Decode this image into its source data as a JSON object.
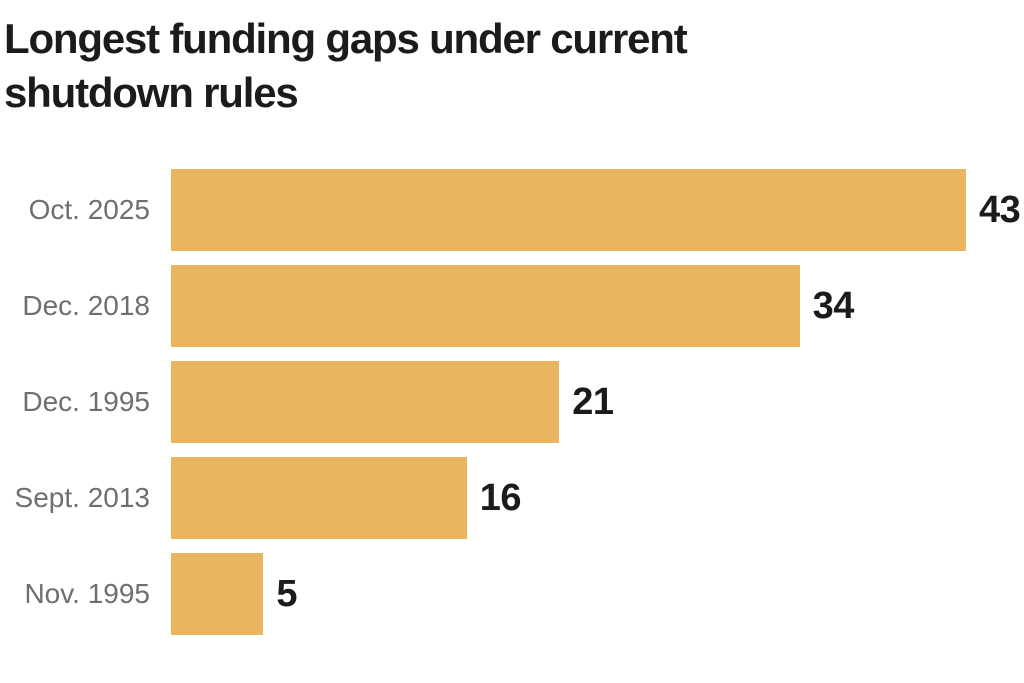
{
  "title": "Longest funding gaps under current shutdown rules",
  "title_lines": [
    "Longest funding gaps under current",
    "shutdown rules"
  ],
  "colors": {
    "background": "#FFFFFF",
    "bar": "#EAB560",
    "title_text": "#1B1B1B",
    "category_label": "#6F6F6F",
    "value_label": "#1B1B1B"
  },
  "chart_data": {
    "type": "bar",
    "orientation": "horizontal",
    "title": "Longest funding gaps under current shutdown rules",
    "categories": [
      "Oct. 2025",
      "Dec. 2018",
      "Dec. 1995",
      "Sept. 2013",
      "Nov. 1995"
    ],
    "values": [
      43,
      34,
      21,
      16,
      5
    ],
    "value_labels": [
      "43",
      "34",
      "21",
      "16",
      "5"
    ],
    "xlabel": "",
    "ylabel": "",
    "xlim": [
      0,
      43
    ],
    "grid": false,
    "legend": false,
    "axis_lines": false,
    "bar_color": "#EAB560",
    "value_label_position": "outside-end",
    "category_label_position": "left"
  }
}
